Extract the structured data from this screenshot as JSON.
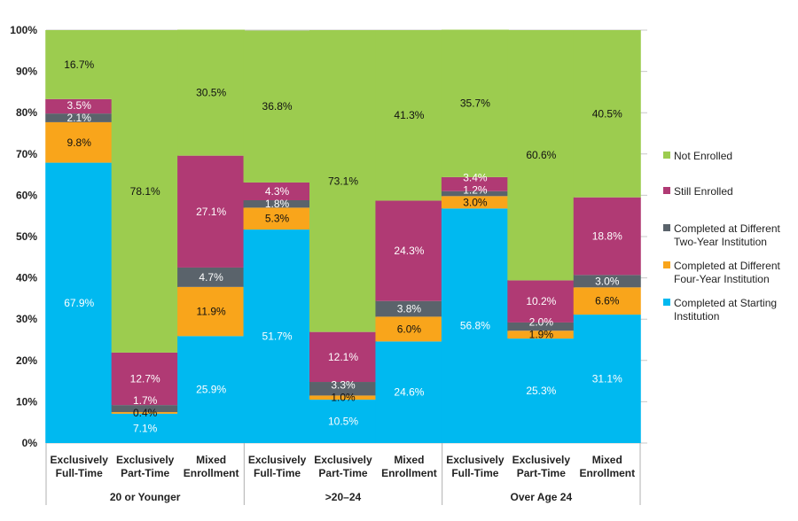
{
  "chart_data": {
    "type": "bar",
    "stacked": true,
    "title": "",
    "xlabel": "",
    "ylabel": "",
    "ylim": [
      0,
      100
    ],
    "yticks": [
      "0%",
      "10%",
      "20%",
      "30%",
      "40%",
      "50%",
      "60%",
      "70%",
      "80%",
      "90%",
      "100%"
    ],
    "grid": true,
    "legend_position": "right",
    "groups": [
      {
        "label": "20 or Younger",
        "categories": [
          "Exclusively Full-Time",
          "Exclusively Part-Time",
          "Mixed Enrollment"
        ]
      },
      {
        "label": ">20–24",
        "categories": [
          "Exclusively Full-Time",
          "Exclusively Part-Time",
          "Mixed Enrollment"
        ]
      },
      {
        "label": "Over Age 24",
        "categories": [
          "Exclusively Full-Time",
          "Exclusively Part-Time",
          "Mixed Enrollment"
        ]
      }
    ],
    "series": [
      {
        "name": "Completed at Starting Institution",
        "color": "#00b9f0",
        "label_color": "#ffffff",
        "values": [
          67.9,
          7.1,
          25.9,
          51.7,
          10.5,
          24.6,
          56.8,
          25.3,
          31.1
        ]
      },
      {
        "name": "Completed at Different Four-Year Institution",
        "color": "#f9a51b",
        "label_color": "#111111",
        "values": [
          9.8,
          0.4,
          11.9,
          5.3,
          1.0,
          6.0,
          3.0,
          1.9,
          6.6
        ]
      },
      {
        "name": "Completed at Different Two-Year Institution",
        "color": "#5a636b",
        "label_color": "#ffffff",
        "values": [
          2.1,
          1.7,
          4.7,
          1.8,
          3.3,
          3.8,
          1.2,
          2.0,
          3.0
        ]
      },
      {
        "name": "Still Enrolled",
        "color": "#b03a74",
        "label_color": "#ffffff",
        "values": [
          3.5,
          12.7,
          27.1,
          4.3,
          12.1,
          24.3,
          3.4,
          10.2,
          18.8
        ]
      },
      {
        "name": "Not Enrolled",
        "color": "#9ccc4f",
        "label_color": "#111111",
        "values": [
          16.7,
          78.1,
          30.5,
          36.8,
          73.1,
          41.3,
          35.7,
          60.6,
          40.5
        ]
      }
    ],
    "legend": [
      [
        "Not Enrolled"
      ],
      [
        "Still Enrolled"
      ],
      [
        "Completed at Different",
        "Two-Year Institution"
      ],
      [
        "Completed at Different",
        "Four-Year Institution"
      ],
      [
        "Completed at Starting",
        "Institution"
      ]
    ]
  }
}
